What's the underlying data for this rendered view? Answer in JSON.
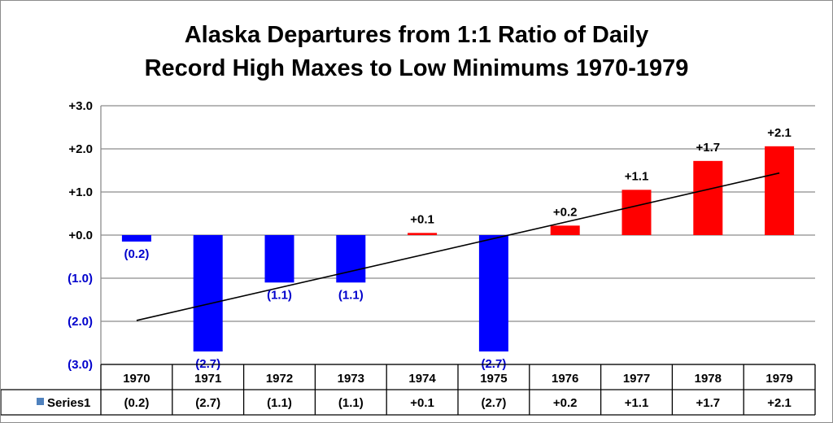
{
  "chart_data": {
    "type": "bar",
    "title_lines": [
      "Alaska Departures from 1:1 Ratio of Daily",
      "Record High Maxes to Low Minimums  1970-1979"
    ],
    "categories": [
      "1970",
      "1971",
      "1972",
      "1973",
      "1974",
      "1975",
      "1976",
      "1977",
      "1978",
      "1979"
    ],
    "series": [
      {
        "name": "Series1",
        "values": [
          -0.15,
          -2.7,
          -1.1,
          -1.1,
          0.05,
          -2.7,
          0.22,
          1.05,
          1.72,
          2.06
        ],
        "labels": [
          "(0.2)",
          "(2.7)",
          "(1.1)",
          "(1.1)",
          "+0.1",
          "(2.7)",
          "+0.2",
          "+1.1",
          "+1.7",
          "+2.1"
        ]
      }
    ],
    "trendline": {
      "type": "linear",
      "start": -1.98,
      "end": 1.44
    },
    "y_ticks": [
      {
        "value": 3,
        "label": "+3.0"
      },
      {
        "value": 2,
        "label": "+2.0"
      },
      {
        "value": 1,
        "label": "+1.0"
      },
      {
        "value": 0,
        "label": "+0.0"
      },
      {
        "value": -1,
        "label": "(1.0)"
      },
      {
        "value": -2,
        "label": "(2.0)"
      },
      {
        "value": -3,
        "label": "(3.0)"
      }
    ],
    "ylim": [
      -3,
      3
    ],
    "grid": true,
    "data_table": true,
    "colors": {
      "positive": "#ff0000",
      "negative": "#0000ff",
      "trendline": "#000000",
      "grid": "#8c8c8c",
      "legend_key": "#4f81bd",
      "negative_label": "#0000cc"
    }
  }
}
